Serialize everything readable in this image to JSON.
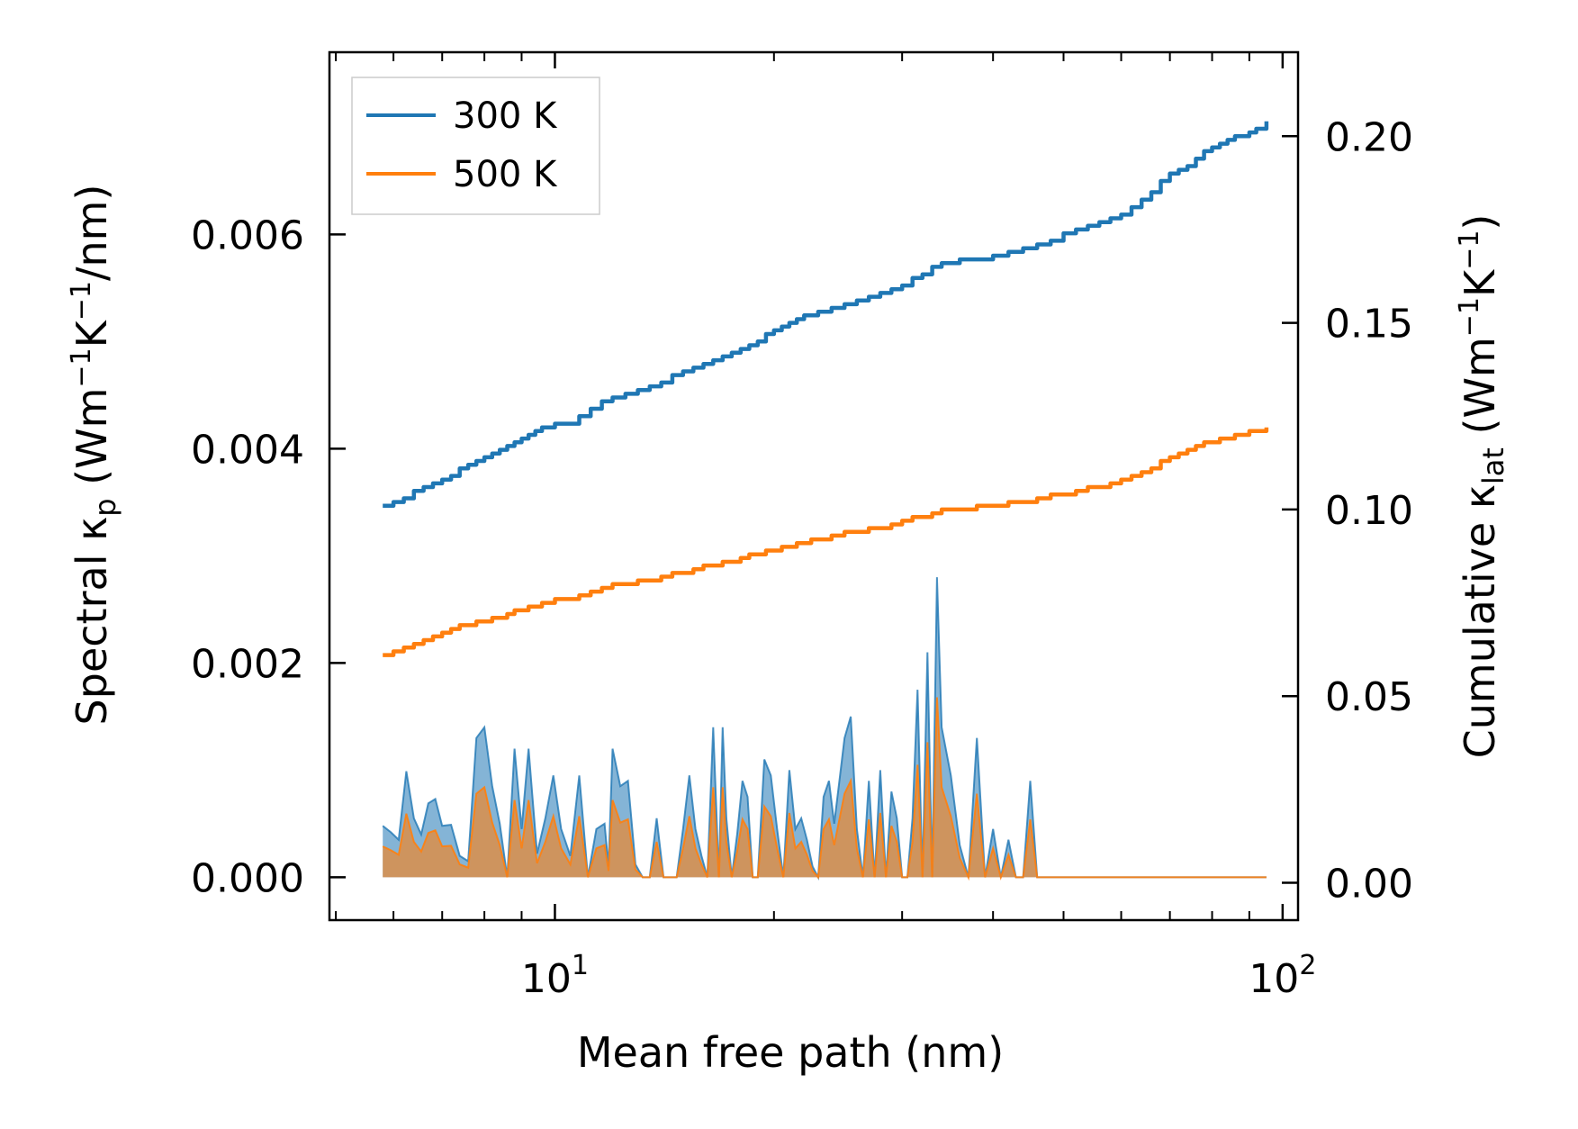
{
  "chart_data": {
    "type": "line+area",
    "xlabel": "Mean free path (nm)",
    "ylabel_left": {
      "main": "Spectral κ",
      "main_sub": "p",
      "unit_open": " (Wm",
      "sup1": "−1",
      "mid": "K",
      "sup2": "−1",
      "unit_close": "/nm)"
    },
    "ylabel_right": {
      "main": "Cumulative κ",
      "main_sub": "lat",
      "unit_open": " (Wm",
      "sup1": "−1",
      "mid": "K",
      "sup2": "−1",
      "unit_close": ")"
    },
    "xscale": "log",
    "xlim": [
      4.9,
      105
    ],
    "ylim_left": [
      -0.0004,
      0.0077
    ],
    "ylim_right": [
      -0.01,
      0.2225
    ],
    "x_ticks": [
      {
        "value": 10,
        "base": "10",
        "exp": "1"
      },
      {
        "value": 100,
        "base": "10",
        "exp": "2"
      }
    ],
    "y_ticks_left": [
      "0.000",
      "0.002",
      "0.004",
      "0.006"
    ],
    "y_ticks_left_values": [
      0,
      0.002,
      0.004,
      0.006
    ],
    "y_ticks_right": [
      "0.00",
      "0.05",
      "0.10",
      "0.15",
      "0.20"
    ],
    "y_ticks_right_values": [
      0,
      0.05,
      0.1,
      0.15,
      0.2
    ],
    "legend": {
      "position": "top-left",
      "entries": [
        "300 K",
        "500 K"
      ]
    },
    "colors": {
      "s300": "#1f77b4",
      "s500": "#ff7f0e",
      "axis": "#000000",
      "legend_border": "#cccccc"
    },
    "spectral": {
      "x": [
        5.8,
        5.95,
        6.1,
        6.25,
        6.4,
        6.55,
        6.7,
        6.85,
        7.0,
        7.2,
        7.4,
        7.6,
        7.8,
        8.0,
        8.2,
        8.4,
        8.6,
        8.8,
        9.0,
        9.2,
        9.45,
        9.7,
        9.95,
        10.2,
        10.5,
        10.8,
        11.1,
        11.4,
        11.7,
        11.85,
        12.0,
        12.3,
        12.6,
        12.9,
        13.2,
        13.5,
        13.8,
        14.1,
        14.4,
        14.7,
        15.0,
        15.3,
        15.6,
        15.9,
        16.2,
        16.5,
        16.8,
        17.0,
        17.2,
        17.5,
        17.8,
        18.1,
        18.4,
        18.7,
        19.0,
        19.4,
        19.8,
        20.2,
        20.6,
        21.0,
        21.4,
        21.8,
        22.2,
        22.6,
        23.0,
        23.4,
        23.8,
        24.2,
        24.6,
        25.0,
        25.5,
        26.0,
        26.5,
        27.0,
        27.5,
        28.0,
        28.5,
        29.0,
        29.5,
        30.0,
        30.5,
        31.0,
        31.5,
        32.0,
        32.5,
        33.0,
        33.5,
        34.0,
        35.0,
        36.0,
        37.0,
        38.0,
        39.0,
        40.0,
        41.0,
        42.0,
        43.0,
        44.0,
        45.0,
        46.0,
        47.0,
        48.0,
        49.0,
        50.0,
        51.0,
        52.0,
        53.0,
        54.0,
        55.0,
        56.0,
        57.0,
        58.0,
        59.0,
        60.0,
        61.0,
        62.0,
        63.0,
        64.0,
        65.0,
        66.0,
        67.0,
        68.0,
        69.0,
        70.0,
        71.0,
        72.0,
        73.0,
        74.0,
        75.0,
        76.0,
        77.0,
        78.0,
        79.0,
        80.0,
        81.0,
        82.0,
        83.0,
        84.0,
        85.0,
        86.0,
        87.0,
        88.0,
        89.0,
        90.0,
        91.0,
        92.0,
        93.0,
        94.0,
        95.0
      ],
      "s300": [
        0.00048,
        0.00042,
        0.00035,
        0.00099,
        0.00055,
        0.0004,
        0.00069,
        0.00073,
        0.00048,
        0.00049,
        0.0002,
        0.00015,
        0.0013,
        0.0014,
        0.00085,
        0.0005,
        0.0,
        0.0012,
        0.00045,
        0.0012,
        0.00022,
        0.00055,
        0.00095,
        0.00045,
        0.0002,
        0.00095,
        0.0,
        0.00045,
        0.0005,
        0.0001,
        0.0012,
        0.00085,
        0.0009,
        0.00012,
        0.0,
        0.0,
        0.00055,
        0.0,
        0.0,
        0.0,
        0.00045,
        0.00095,
        0.00045,
        0.0002,
        0.0,
        0.0014,
        0.0,
        0.0014,
        0.00055,
        0.0,
        0.0004,
        0.0009,
        0.00075,
        0.0,
        0.0,
        0.0011,
        0.00095,
        0.00045,
        0.0,
        0.001,
        0.00045,
        0.00055,
        0.00035,
        0.0001,
        0.0,
        0.00075,
        0.0009,
        0.0005,
        0.0009,
        0.0013,
        0.0015,
        0.00045,
        0.0,
        0.0009,
        0.0,
        0.001,
        0.0,
        0.0008,
        0.00055,
        0.0,
        0.0,
        0.00055,
        0.00175,
        0.0,
        0.0021,
        0.0,
        0.0028,
        0.0014,
        0.00095,
        0.0003,
        0.0,
        0.0013,
        0.0,
        0.00045,
        0.0,
        0.00035,
        0.0,
        0.0,
        0.0009,
        0.0,
        0.0,
        0.0,
        0.0,
        0.0,
        0.0,
        0.0,
        0.0,
        0.0,
        0.0,
        0.0,
        0.0,
        0.0,
        0.0,
        0.0,
        0.0,
        0.0,
        0.0,
        0.0,
        0.0,
        0.0,
        0.0,
        0.0,
        0.0,
        0.0,
        0.0,
        0.0,
        0.0,
        0.0,
        0.0,
        0.0,
        0.0,
        0.0,
        0.0,
        0.0,
        0.0,
        0.0,
        0.0,
        0.0,
        0.0,
        0.0,
        0.0,
        0.0,
        0.0,
        0.0,
        0.0,
        0.0,
        0.0,
        0.0,
        0.0,
        0.0
      ],
      "s500": []
    },
    "cumulative": {
      "x": [
        5.8,
        6.0,
        6.2,
        6.4,
        6.6,
        6.8,
        7.0,
        7.2,
        7.4,
        7.6,
        7.8,
        8.0,
        8.2,
        8.4,
        8.6,
        8.8,
        9.0,
        9.2,
        9.4,
        9.6,
        9.8,
        10.0,
        10.4,
        10.8,
        11.2,
        11.6,
        12.0,
        12.5,
        13.0,
        13.5,
        14.0,
        14.5,
        15.0,
        15.5,
        16.0,
        16.5,
        17.0,
        17.5,
        18.0,
        18.5,
        19.0,
        19.5,
        20.0,
        20.5,
        21.0,
        21.5,
        22.0,
        22.5,
        23.0,
        24.0,
        25.0,
        26.0,
        27.0,
        28.0,
        29.0,
        30.0,
        31.0,
        32.0,
        33.0,
        34.0,
        35.0,
        36.0,
        38.0,
        40.0,
        42.0,
        44.0,
        46.0,
        48.0,
        50.0,
        52.0,
        54.0,
        56.0,
        58.0,
        60.0,
        62.0,
        64.0,
        66.0,
        68.0,
        70.0,
        72.0,
        74.0,
        76.0,
        78.0,
        80.0,
        82.0,
        84.0,
        86.0,
        88.0,
        90.0,
        92.0,
        95.0
      ],
      "s300": [
        0.101,
        0.102,
        0.103,
        0.105,
        0.106,
        0.107,
        0.108,
        0.109,
        0.111,
        0.112,
        0.113,
        0.114,
        0.115,
        0.116,
        0.117,
        0.118,
        0.119,
        0.12,
        0.121,
        0.122,
        0.122,
        0.123,
        0.123,
        0.125,
        0.127,
        0.129,
        0.13,
        0.131,
        0.132,
        0.133,
        0.134,
        0.136,
        0.137,
        0.138,
        0.139,
        0.14,
        0.141,
        0.142,
        0.143,
        0.144,
        0.145,
        0.147,
        0.148,
        0.149,
        0.15,
        0.151,
        0.152,
        0.152,
        0.153,
        0.154,
        0.155,
        0.156,
        0.157,
        0.158,
        0.159,
        0.16,
        0.162,
        0.163,
        0.165,
        0.166,
        0.166,
        0.167,
        0.167,
        0.168,
        0.169,
        0.17,
        0.171,
        0.172,
        0.174,
        0.175,
        0.176,
        0.177,
        0.178,
        0.179,
        0.181,
        0.183,
        0.185,
        0.188,
        0.19,
        0.191,
        0.192,
        0.194,
        0.196,
        0.197,
        0.198,
        0.199,
        0.2,
        0.2,
        0.201,
        0.202,
        0.204
      ],
      "s500": [
        0.061,
        0.062,
        0.063,
        0.064,
        0.065,
        0.066,
        0.067,
        0.068,
        0.069,
        0.069,
        0.07,
        0.07,
        0.071,
        0.071,
        0.072,
        0.073,
        0.073,
        0.074,
        0.074,
        0.075,
        0.075,
        0.076,
        0.076,
        0.077,
        0.078,
        0.079,
        0.08,
        0.08,
        0.081,
        0.081,
        0.082,
        0.083,
        0.083,
        0.084,
        0.085,
        0.085,
        0.086,
        0.086,
        0.087,
        0.088,
        0.088,
        0.089,
        0.089,
        0.09,
        0.09,
        0.091,
        0.091,
        0.092,
        0.092,
        0.093,
        0.094,
        0.094,
        0.095,
        0.095,
        0.096,
        0.097,
        0.098,
        0.098,
        0.099,
        0.1,
        0.1,
        0.1,
        0.101,
        0.101,
        0.102,
        0.102,
        0.103,
        0.104,
        0.104,
        0.105,
        0.106,
        0.106,
        0.107,
        0.108,
        0.109,
        0.11,
        0.111,
        0.113,
        0.114,
        0.115,
        0.116,
        0.117,
        0.118,
        0.118,
        0.119,
        0.119,
        0.12,
        0.12,
        0.121,
        0.121,
        0.122
      ]
    }
  }
}
